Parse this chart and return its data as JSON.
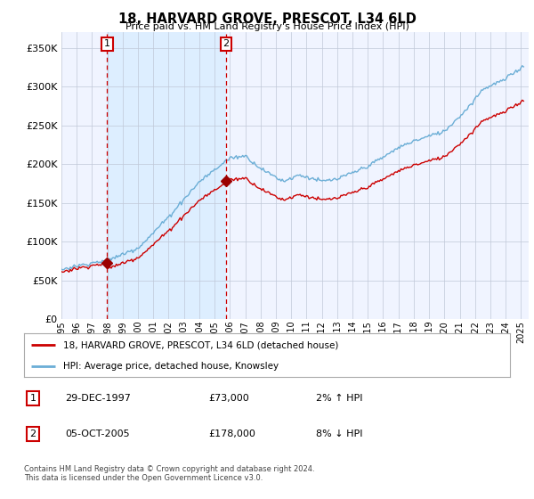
{
  "title": "18, HARVARD GROVE, PRESCOT, L34 6LD",
  "subtitle": "Price paid vs. HM Land Registry's House Price Index (HPI)",
  "ylabel_ticks": [
    "£0",
    "£50K",
    "£100K",
    "£150K",
    "£200K",
    "£250K",
    "£300K",
    "£350K"
  ],
  "ytick_values": [
    0,
    50000,
    100000,
    150000,
    200000,
    250000,
    300000,
    350000
  ],
  "ylim": [
    0,
    370000
  ],
  "xlim_start": 1995.0,
  "xlim_end": 2025.5,
  "sale1_date": 1997.99,
  "sale1_price": 73000,
  "sale1_label": "1",
  "sale2_date": 2005.75,
  "sale2_price": 178000,
  "sale2_label": "2",
  "legend_property": "18, HARVARD GROVE, PRESCOT, L34 6LD (detached house)",
  "legend_hpi": "HPI: Average price, detached house, Knowsley",
  "footnote": "Contains HM Land Registry data © Crown copyright and database right 2024.\nThis data is licensed under the Open Government Licence v3.0.",
  "hpi_color": "#6baed6",
  "property_color": "#cc0000",
  "marker_color": "#9b0000",
  "vline_color": "#cc0000",
  "shade_color": "#ddeeff",
  "background_color": "#ffffff",
  "plot_bg_color": "#f0f4ff",
  "grid_color": "#c0c8d8",
  "xticks": [
    1995,
    1996,
    1997,
    1998,
    1999,
    2000,
    2001,
    2002,
    2003,
    2004,
    2005,
    2006,
    2007,
    2008,
    2009,
    2010,
    2011,
    2012,
    2013,
    2014,
    2015,
    2016,
    2017,
    2018,
    2019,
    2020,
    2021,
    2022,
    2023,
    2024,
    2025
  ]
}
